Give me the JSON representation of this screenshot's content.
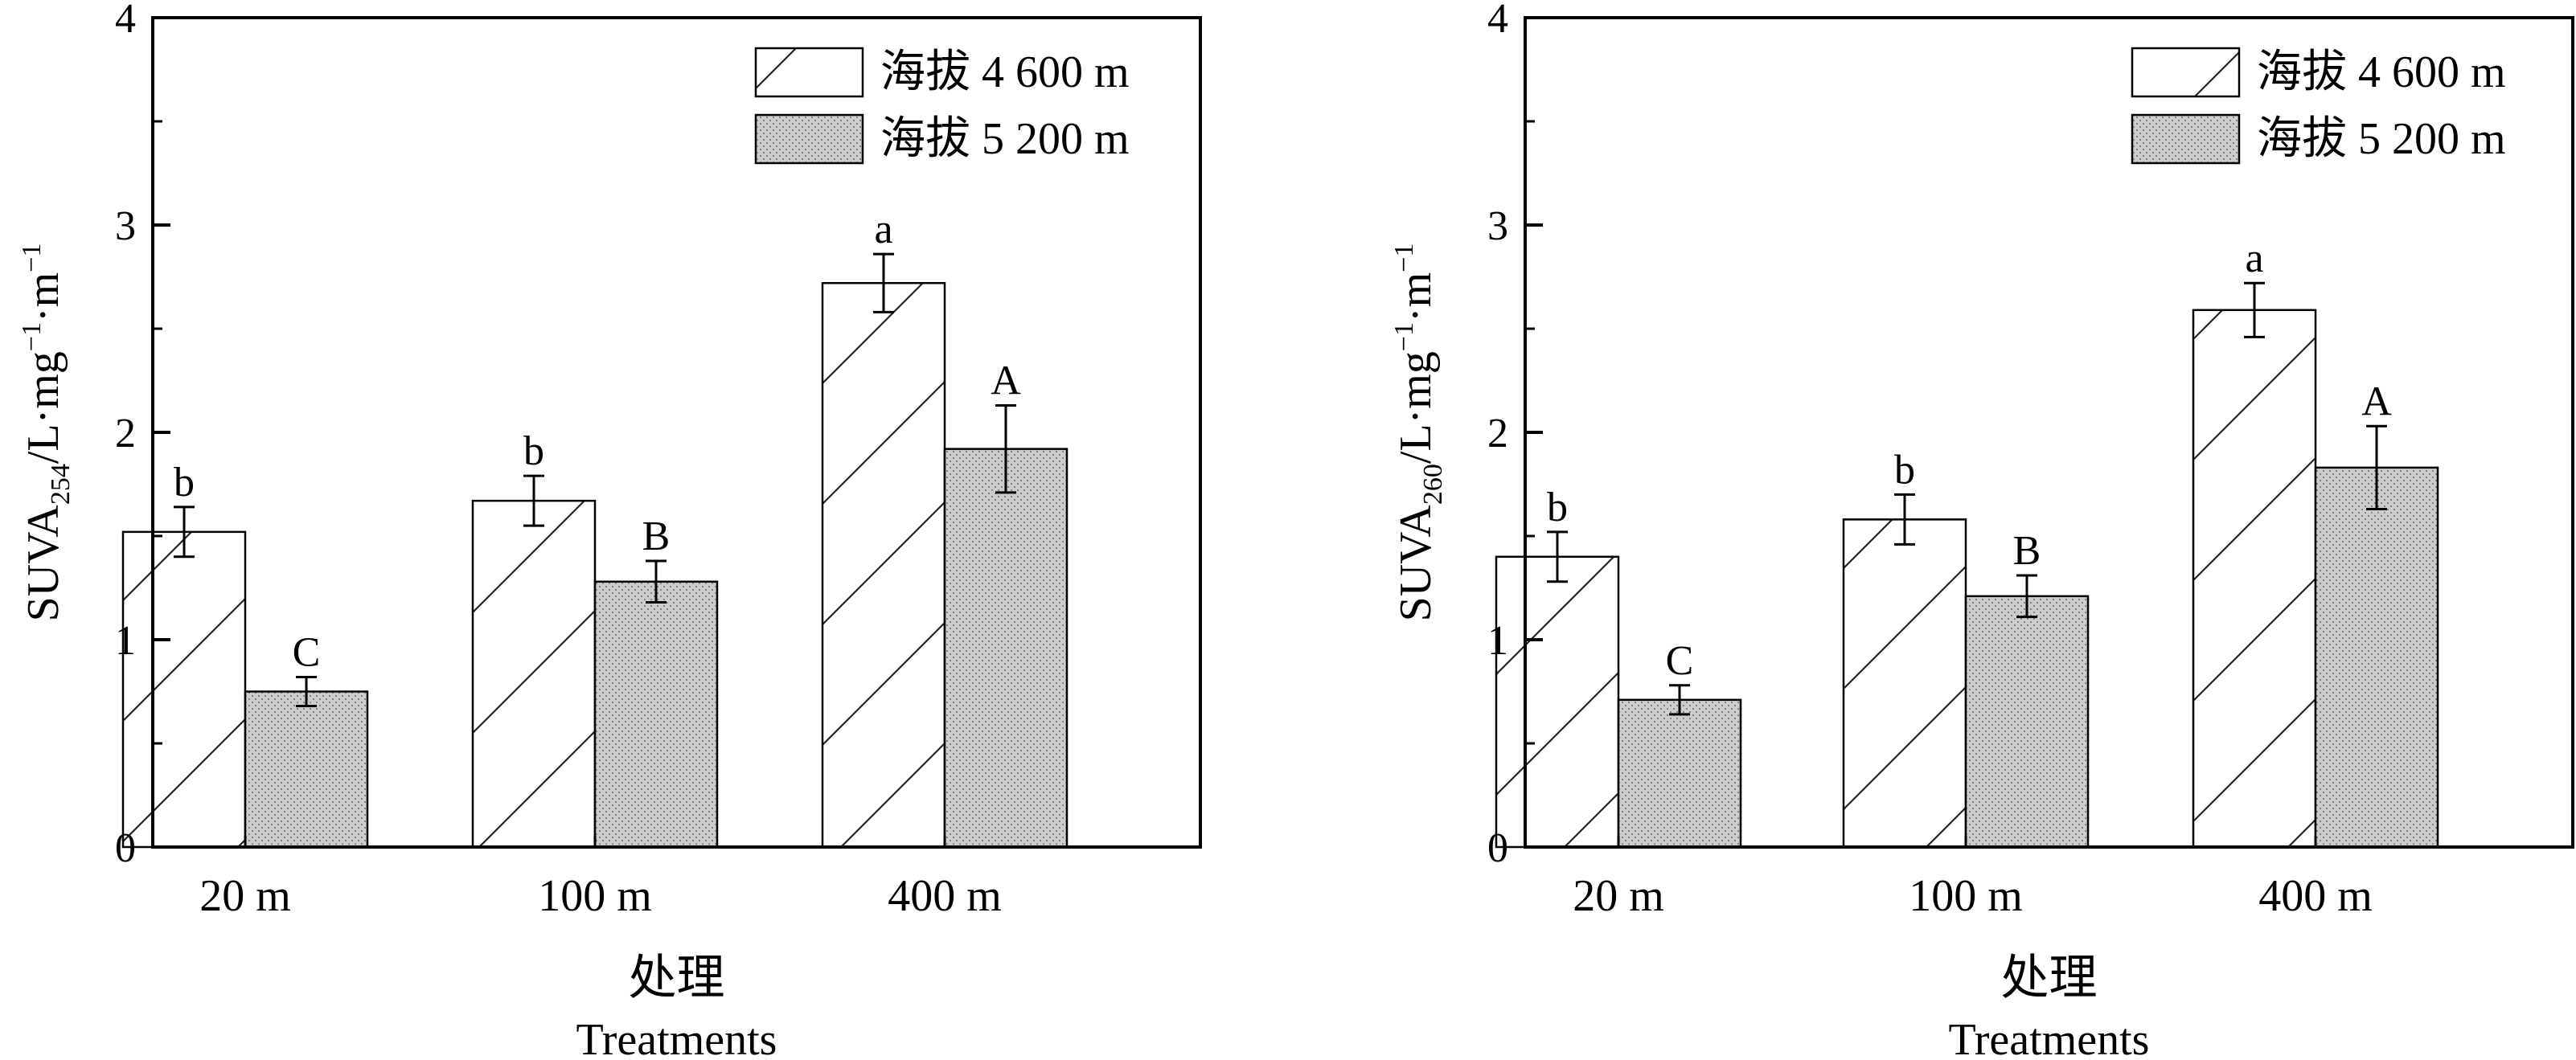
{
  "chart_data": [
    {
      "type": "bar",
      "categories": [
        "20 m",
        "100 m",
        "400 m"
      ],
      "series": [
        {
          "name": "海拔 4 600 m",
          "values": [
            1.52,
            1.67,
            2.72
          ],
          "errors": [
            0.12,
            0.12,
            0.14
          ],
          "letters": [
            "b",
            "b",
            "a"
          ],
          "pattern": "hatch"
        },
        {
          "name": "海拔 5 200 m",
          "values": [
            0.75,
            1.28,
            1.92
          ],
          "errors": [
            0.07,
            0.1,
            0.21
          ],
          "letters": [
            "C",
            "B",
            "A"
          ],
          "pattern": "dots"
        }
      ],
      "ylabel": {
        "main": "SUVA",
        "sub": "254",
        "rest": "/L·mg",
        "sup1": "−1",
        "mid": "·m",
        "sup2": "−1"
      },
      "xlabel_cn": "处理",
      "xlabel_en": "Treatments",
      "ylim": [
        0,
        4
      ],
      "yticks": [
        "0",
        "1",
        "2",
        "3",
        "4"
      ],
      "legend": "top-right"
    },
    {
      "type": "bar",
      "categories": [
        "20 m",
        "100 m",
        "400 m"
      ],
      "series": [
        {
          "name": "海拔 4 600 m",
          "values": [
            1.4,
            1.58,
            2.59
          ],
          "errors": [
            0.12,
            0.12,
            0.13
          ],
          "letters": [
            "b",
            "b",
            "a"
          ],
          "pattern": "hatch"
        },
        {
          "name": "海拔 5 200 m",
          "values": [
            0.71,
            1.21,
            1.83
          ],
          "errors": [
            0.07,
            0.1,
            0.2
          ],
          "letters": [
            "C",
            "B",
            "A"
          ],
          "pattern": "dots"
        }
      ],
      "ylabel": {
        "main": "SUVA",
        "sub": "260",
        "rest": "/L·mg",
        "sup1": "−1",
        "mid": "·m",
        "sup2": "−1"
      },
      "xlabel_cn": "处理",
      "xlabel_en": "Treatments",
      "ylim": [
        0,
        4
      ],
      "yticks": [
        "0",
        "1",
        "2",
        "3",
        "4"
      ],
      "legend": "top-right"
    }
  ]
}
